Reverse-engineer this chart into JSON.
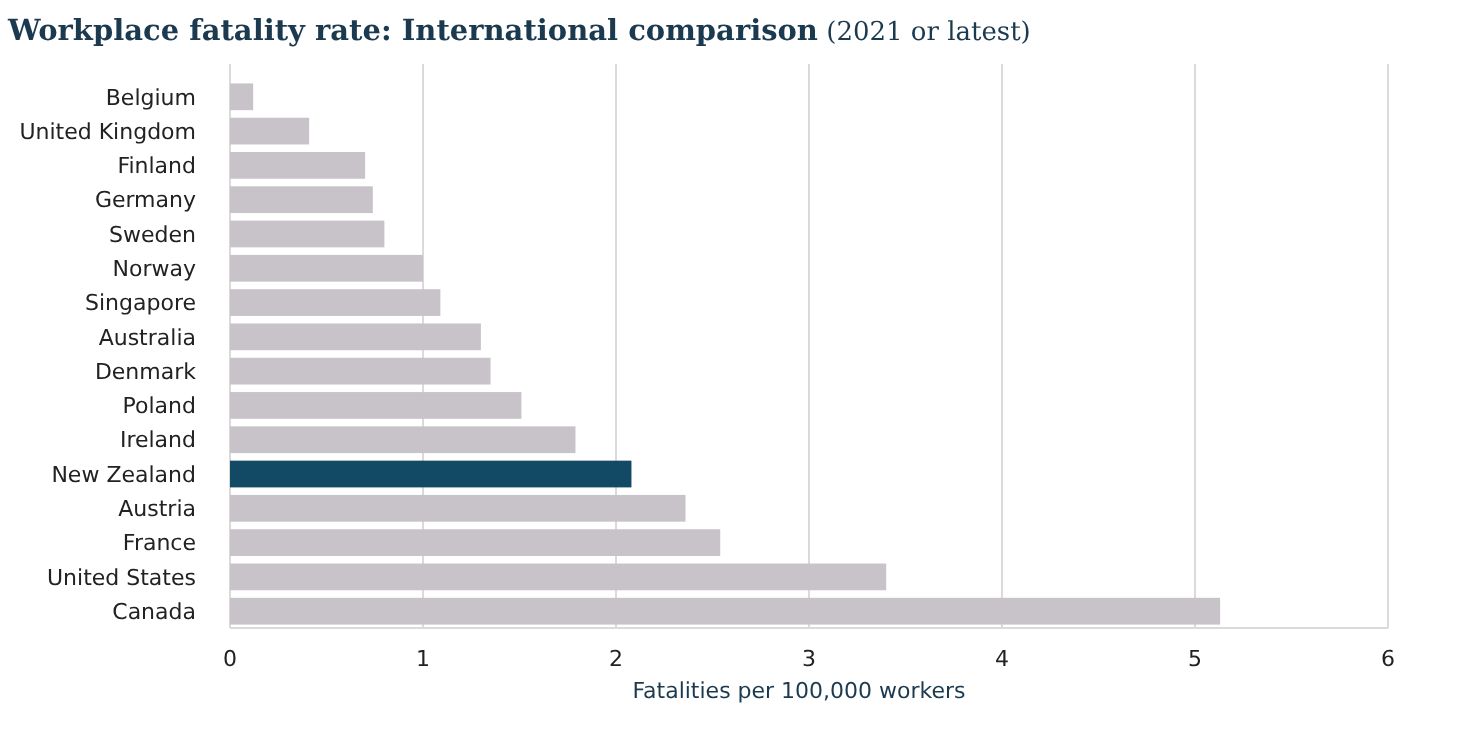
{
  "chart_data": {
    "type": "bar",
    "orientation": "horizontal",
    "title": "Workplace fatality rate: International comparison",
    "subtitle": "(2021 or latest)",
    "xlabel": "Fatalities per 100,000 workers",
    "categories": [
      "Belgium",
      "United Kingdom",
      "Finland",
      "Germany",
      "Sweden",
      "Norway",
      "Singapore",
      "Australia",
      "Denmark",
      "Poland",
      "Ireland",
      "New Zealand",
      "Austria",
      "France",
      "United States",
      "Canada"
    ],
    "values": [
      0.12,
      0.41,
      0.7,
      0.74,
      0.8,
      1.0,
      1.09,
      1.3,
      1.35,
      1.51,
      1.79,
      2.08,
      2.36,
      2.54,
      3.4,
      5.13
    ],
    "colors": [
      "#c8c3c8",
      "#c8c3c8",
      "#c8c3c8",
      "#c8c3c8",
      "#c8c3c8",
      "#c8c3c8",
      "#c8c3c8",
      "#c8c3c8",
      "#c8c3c8",
      "#c8c3c8",
      "#c8c3c8",
      "#124a66",
      "#c8c3c8",
      "#c8c3c8",
      "#c8c3c8",
      "#c8c3c8"
    ],
    "xlim": [
      0,
      6
    ],
    "xticks": [
      0,
      1,
      2,
      3,
      4,
      5,
      6
    ],
    "grid": "x"
  }
}
